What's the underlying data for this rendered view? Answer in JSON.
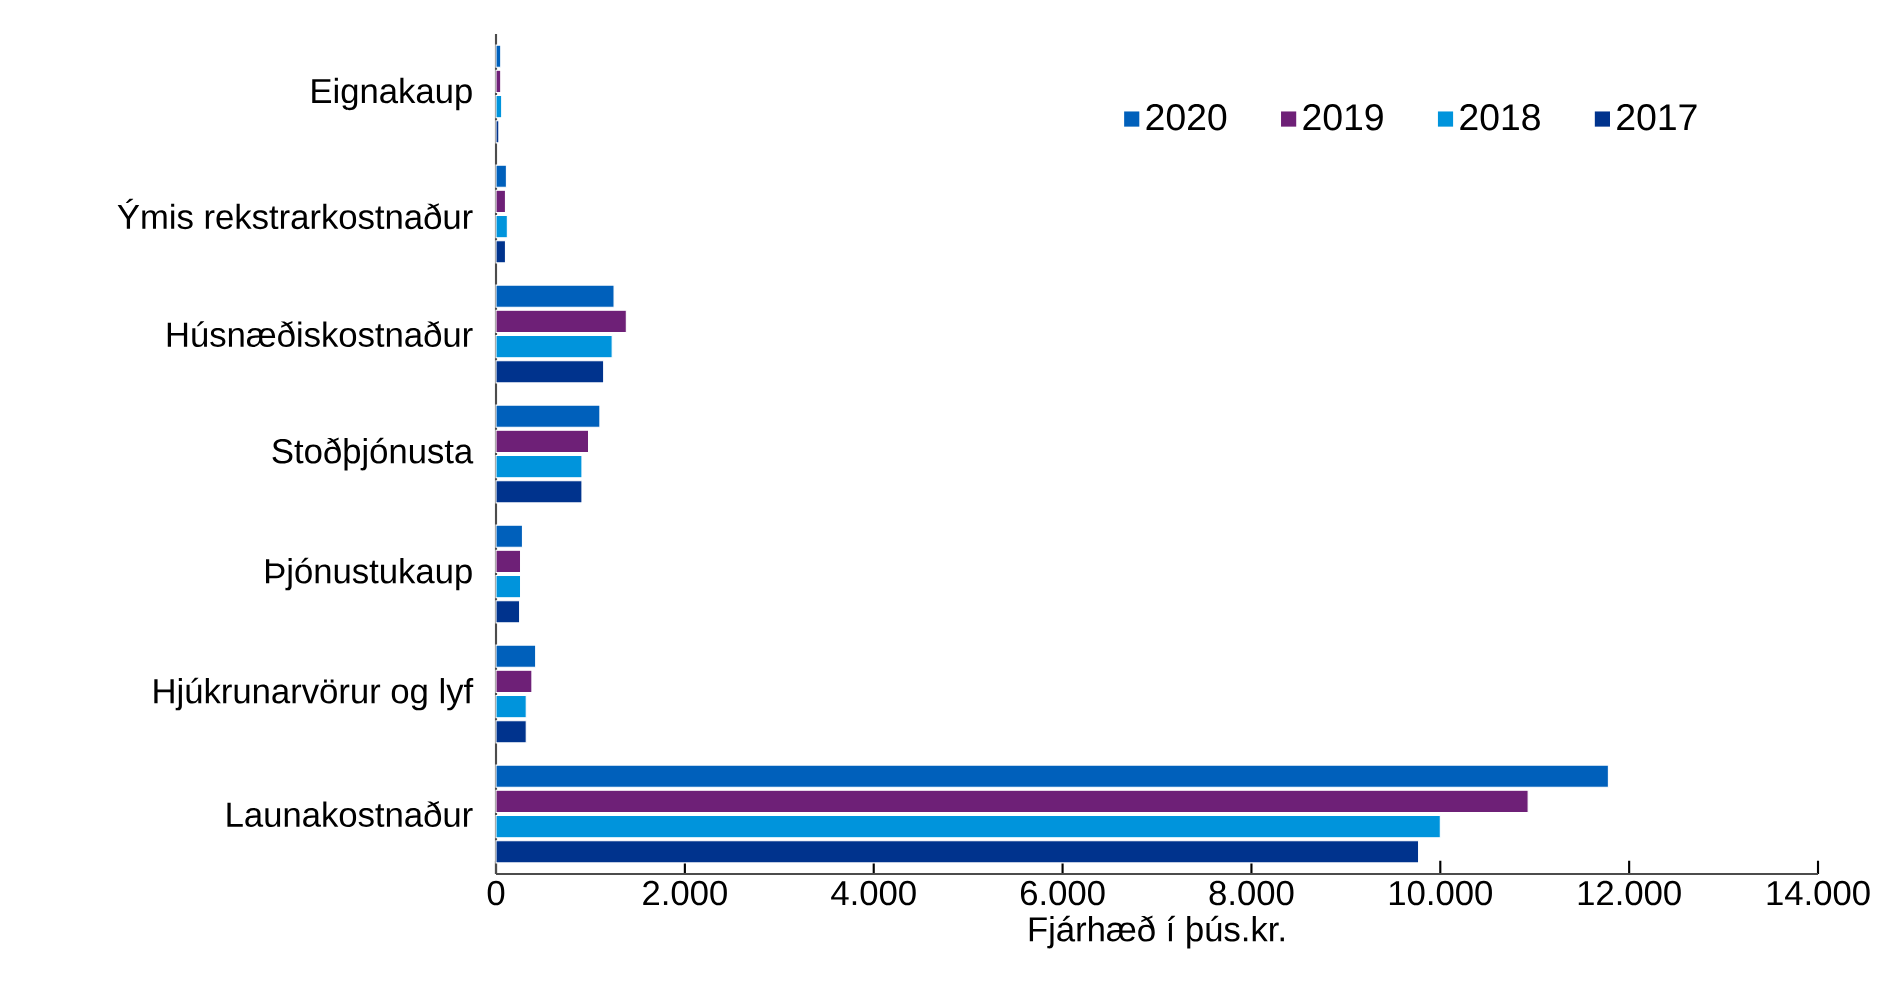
{
  "chart_data": {
    "type": "bar",
    "orientation": "horizontal",
    "xlabel": "Fjárhæð í þús.kr.",
    "categories": [
      "Eignakaup",
      "Ýmis rekstrarkostnaður",
      "Húsnæðiskostnaður",
      "Stoðþjónusta",
      "Þjónustukaup",
      "Hjúkrunarvörur og lyf",
      "Launakostnaður"
    ],
    "series": [
      {
        "name": "2020",
        "color": "#0060bb",
        "values": [
          50,
          110,
          1250,
          1100,
          280,
          420,
          11780
        ]
      },
      {
        "name": "2019",
        "color": "#6e2077",
        "values": [
          50,
          100,
          1380,
          980,
          260,
          380,
          10930
        ]
      },
      {
        "name": "2018",
        "color": "#0094dc",
        "values": [
          60,
          120,
          1230,
          910,
          260,
          320,
          10000
        ]
      },
      {
        "name": "2017",
        "color": "#00338d",
        "values": [
          30,
          100,
          1140,
          910,
          250,
          320,
          9770
        ]
      }
    ],
    "xlim": [
      0,
      14000
    ],
    "xticks": [
      0,
      {
        "value": 2000,
        "label": "2.000"
      },
      {
        "value": 4000,
        "label": "4.000"
      },
      {
        "value": 6000,
        "label": "6.000"
      },
      {
        "value": 8000,
        "label": "8.000"
      },
      {
        "value": 10000,
        "label": "10.000"
      },
      {
        "value": 12000,
        "label": "12.000"
      },
      {
        "value": 14000,
        "label": "14.000"
      }
    ],
    "grid": false,
    "legend": "top right"
  }
}
